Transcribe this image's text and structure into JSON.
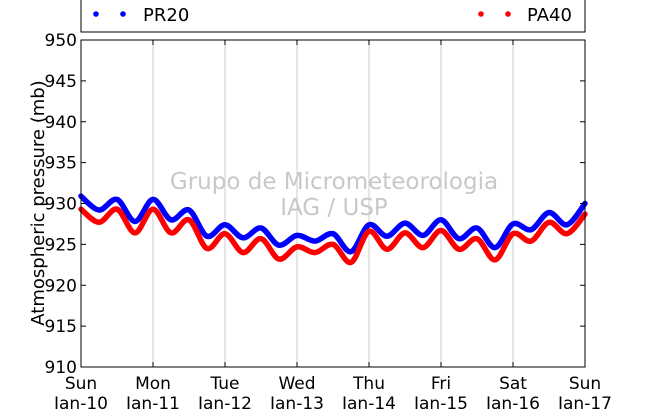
{
  "chart_data": {
    "type": "line",
    "title": "",
    "ylabel": "Atmospheric pressure (mb)",
    "xlabel": "",
    "ylim": [
      910,
      950
    ],
    "yticks": [
      910,
      915,
      920,
      925,
      930,
      935,
      940,
      945,
      950
    ],
    "xlim": [
      "2017-01-10",
      "2017-01-17"
    ],
    "xticks": [
      {
        "day": "Sun",
        "date": "Jan-10"
      },
      {
        "day": "Mon",
        "date": "Jan-11"
      },
      {
        "day": "Tue",
        "date": "Jan-12"
      },
      {
        "day": "Wed",
        "date": "Jan-13"
      },
      {
        "day": "Thu",
        "date": "Jan-14"
      },
      {
        "day": "Fri",
        "date": "Jan-15"
      },
      {
        "day": "Sat",
        "date": "Jan-16"
      },
      {
        "day": "Sun",
        "date": "Jan-17"
      }
    ],
    "grid": "vertical",
    "legend_position": "top",
    "x": [
      "2017-01-10 00:00",
      "2017-01-10 06:00",
      "2017-01-10 12:00",
      "2017-01-10 18:00",
      "2017-01-11 00:00",
      "2017-01-11 06:00",
      "2017-01-11 12:00",
      "2017-01-11 18:00",
      "2017-01-12 00:00",
      "2017-01-12 06:00",
      "2017-01-12 12:00",
      "2017-01-12 18:00",
      "2017-01-13 00:00",
      "2017-01-13 06:00",
      "2017-01-13 12:00",
      "2017-01-13 18:00",
      "2017-01-14 00:00",
      "2017-01-14 06:00",
      "2017-01-14 12:00",
      "2017-01-14 18:00",
      "2017-01-15 00:00",
      "2017-01-15 06:00",
      "2017-01-15 12:00",
      "2017-01-15 18:00",
      "2017-01-16 00:00",
      "2017-01-16 06:00",
      "2017-01-16 12:00",
      "2017-01-16 18:00",
      "2017-01-17 00:00"
    ],
    "series": [
      {
        "name": "PR20",
        "color": "#0000ff",
        "values": [
          930.9,
          929.2,
          930.5,
          927.8,
          930.5,
          928.0,
          929.2,
          926.0,
          927.4,
          925.8,
          927.0,
          924.9,
          926.1,
          925.4,
          926.3,
          924.1,
          927.4,
          926.0,
          927.6,
          926.1,
          928.0,
          925.7,
          927.0,
          924.6,
          927.5,
          926.8,
          928.9,
          927.4,
          930.0
        ]
      },
      {
        "name": "PA40",
        "color": "#ff0000",
        "values": [
          929.3,
          927.7,
          929.3,
          926.4,
          929.3,
          926.4,
          928.0,
          924.5,
          926.3,
          924.0,
          925.7,
          923.2,
          924.7,
          924.0,
          925.0,
          922.8,
          926.6,
          924.4,
          926.4,
          924.6,
          926.7,
          924.4,
          925.7,
          923.1,
          926.3,
          925.4,
          927.7,
          926.3,
          928.7
        ]
      }
    ]
  },
  "watermark": {
    "line1": "Grupo de Micrometeorologia",
    "line2": "IAG / USP"
  }
}
